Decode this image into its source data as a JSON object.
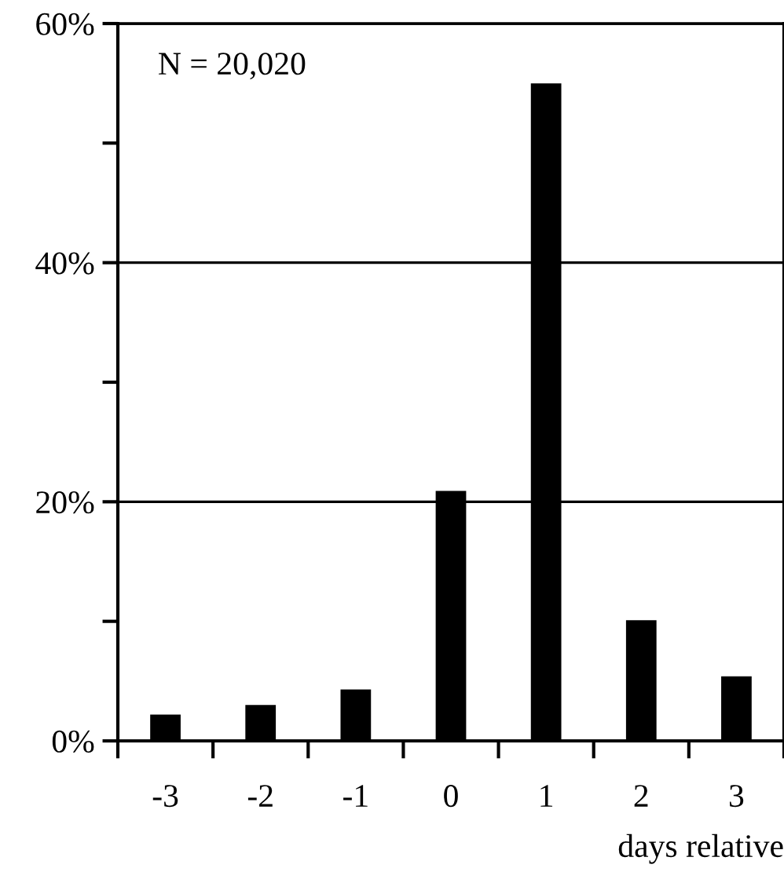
{
  "chart_data": {
    "type": "bar",
    "xlabel": "days relative",
    "categories": [
      "-3",
      "-2",
      "-1",
      "0",
      "1",
      "2",
      "3"
    ],
    "values": [
      2.2,
      3.0,
      4.3,
      20.9,
      55,
      10.1,
      5.4
    ],
    "color": "#000000",
    "ylim": [
      0,
      60
    ],
    "yticks": [
      {
        "value": 0,
        "label": "0%"
      },
      {
        "value": 10,
        "label": null
      },
      {
        "value": 20,
        "label": "20%"
      },
      {
        "value": 30,
        "label": null
      },
      {
        "value": 40,
        "label": "40%"
      },
      {
        "value": 50,
        "label": null
      },
      {
        "value": 60,
        "label": "60%"
      }
    ],
    "grid": "y",
    "annotations": [
      "N = 20,020"
    ]
  }
}
